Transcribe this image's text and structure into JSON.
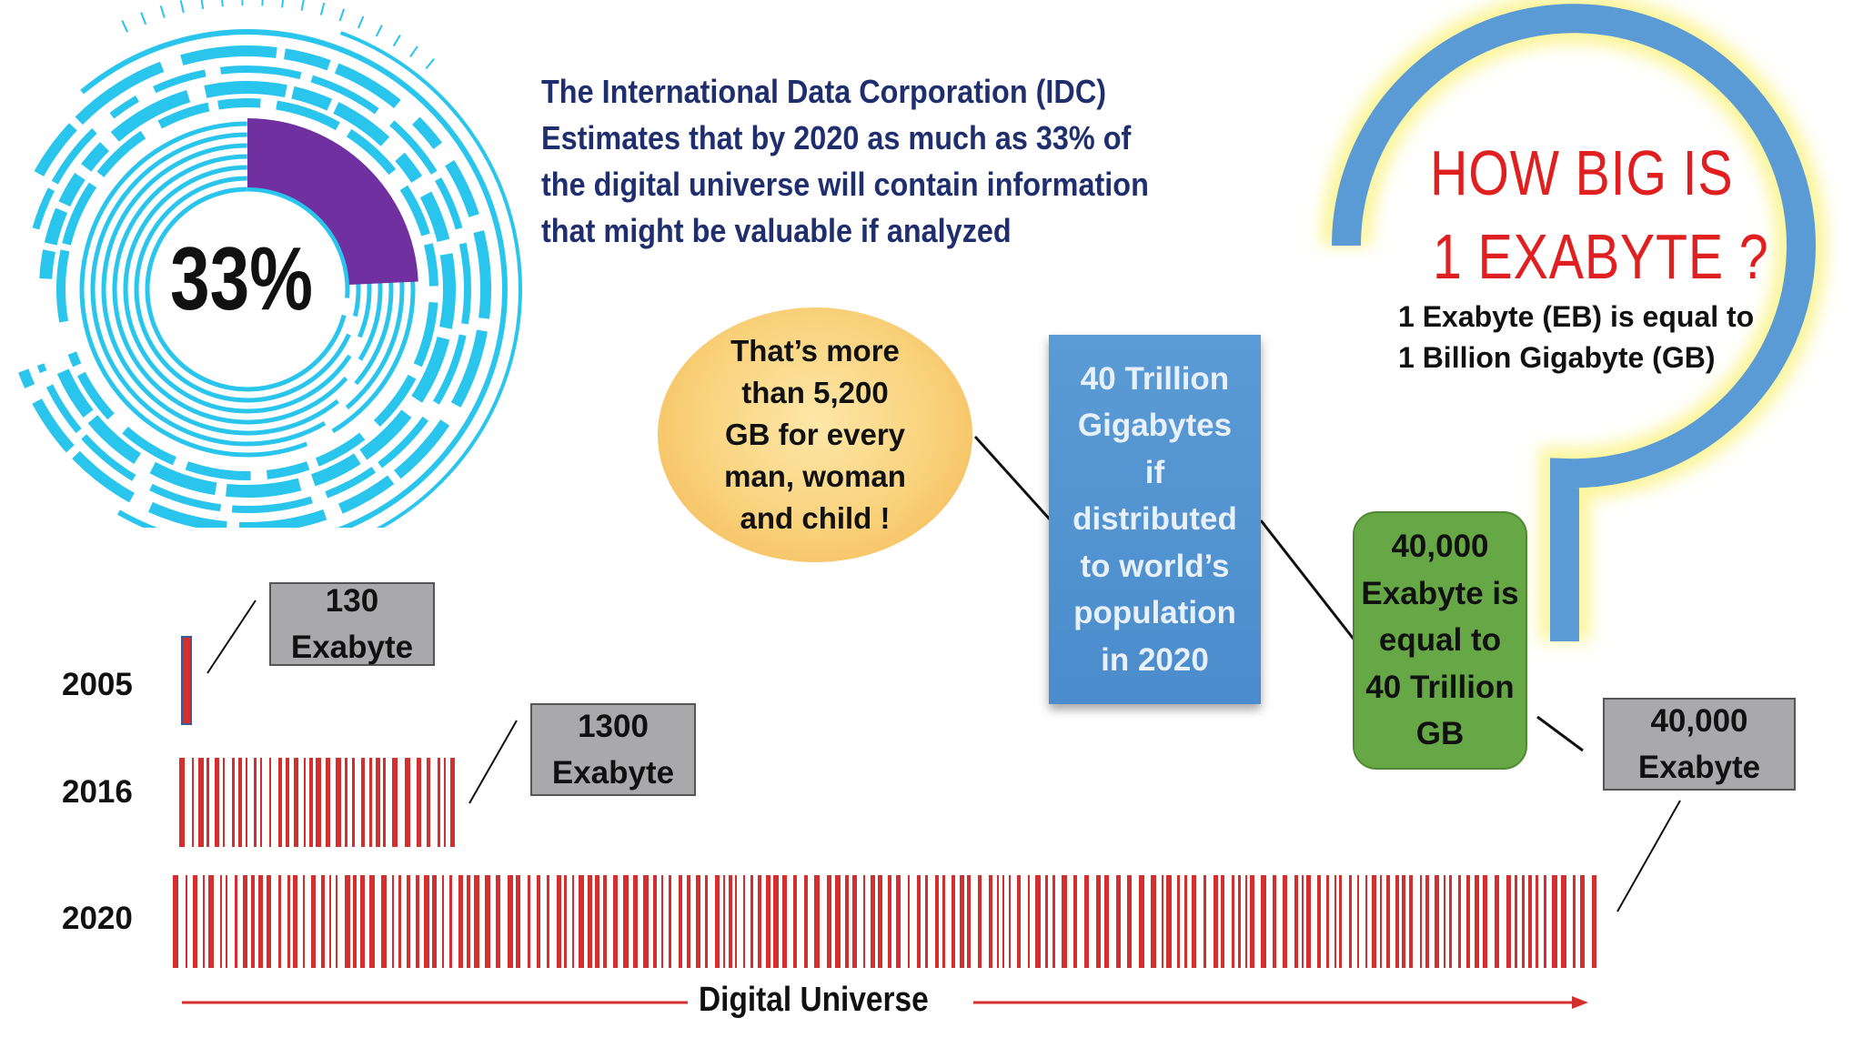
{
  "headline": [
    "The International Data Corporation (IDC)",
    "Estimates that by 2020 as much as 33% of",
    "the digital universe will contain information",
    "that might be valuable if analyzed"
  ],
  "gauge": {
    "percent_label": "33%",
    "fraction": 0.33,
    "ring_color": "#29c5ec",
    "fill_color": "#7030a0"
  },
  "question": {
    "line1": "HOW BIG IS",
    "line2": "1 EXABYTE ?",
    "color": "#e02020"
  },
  "equivalence": {
    "line1": "1 Exabyte (EB) is equal to",
    "line2": "1 Billion Gigabyte (GB)"
  },
  "oval": {
    "lines": [
      "That’s more",
      "than 5,200",
      "GB for every",
      "man, woman",
      "and child !"
    ]
  },
  "blue_box": {
    "lines": [
      "40 Trillion",
      "Gigabytes",
      "if",
      "distributed",
      "to world’s",
      "population",
      "in 2020"
    ]
  },
  "green_box": {
    "lines": [
      "40,000",
      "Exabyte is",
      "equal to",
      "40 Trillion",
      "GB"
    ]
  },
  "rows": [
    {
      "year": "2005",
      "label_lines": [
        "130",
        "Exabyte"
      ]
    },
    {
      "year": "2016",
      "label_lines": [
        "1300",
        "Exabyte"
      ]
    },
    {
      "year": "2020",
      "label_lines": [
        "40,000",
        "Exabyte"
      ]
    }
  ],
  "axis_label": "Digital Universe",
  "colors": {
    "bar_red": "#d32f2f",
    "headline_navy": "#1f2f6e",
    "hook_blue": "#5b9bd5",
    "glow_yellow": "#fbf59a"
  }
}
